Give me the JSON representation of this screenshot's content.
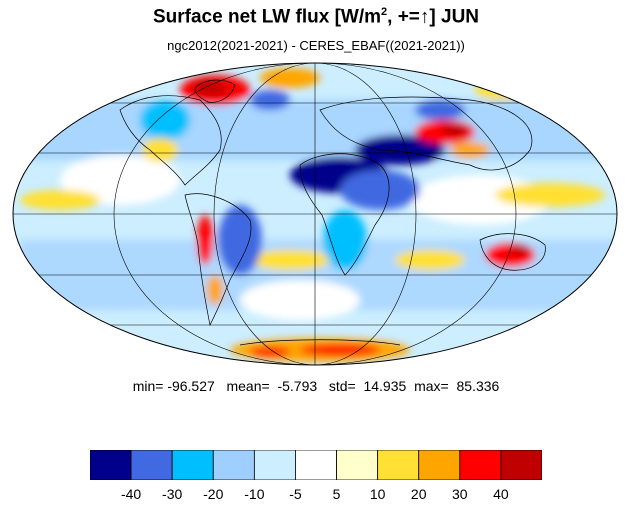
{
  "title": {
    "main": "Surface net LW flux [W/m",
    "sup": "2",
    "rest": ", +=↑]  JUN"
  },
  "subtitle": "ngc2012(2021-2021) - CERES_EBAF((2021-2021))",
  "stats": {
    "min_label": "min=",
    "min": "-96.527",
    "mean_label": "mean=",
    "mean": "-5.793",
    "std_label": "std=",
    "std": "14.935",
    "max_label": "max=",
    "max": "85.336"
  },
  "colorbar": {
    "colors": [
      "#00008b",
      "#4169e1",
      "#00bfff",
      "#9fcfff",
      "#cceeff",
      "#ffffff",
      "#ffffcc",
      "#ffe033",
      "#ffa500",
      "#ff0000",
      "#c00000"
    ],
    "labels": [
      "-40",
      "-30",
      "-20",
      "-10",
      "-5",
      "5",
      "10",
      "20",
      "30",
      "40"
    ]
  },
  "map": {
    "projection": "mollweide",
    "parallels_deg": [
      -60,
      -30,
      0,
      30,
      60
    ],
    "meridians_deg": [
      -120,
      -60,
      0,
      60,
      120
    ]
  }
}
